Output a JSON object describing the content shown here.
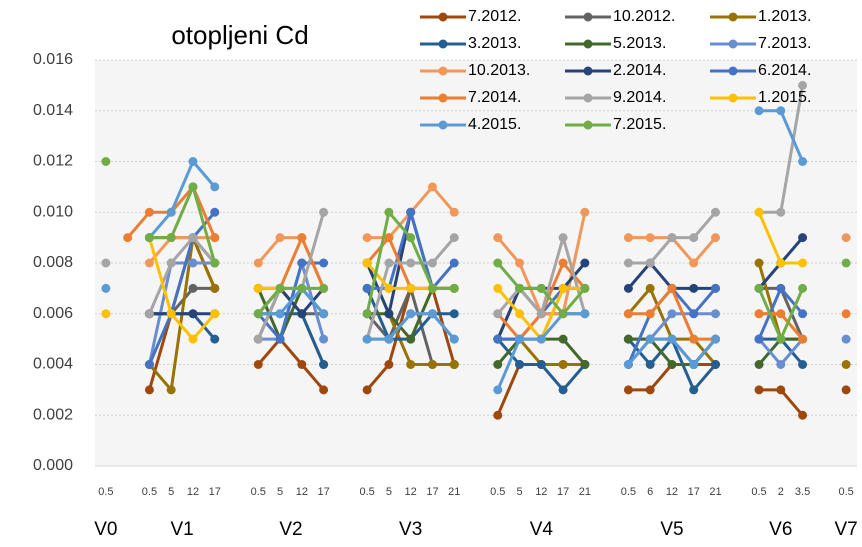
{
  "chart_data": {
    "type": "line",
    "title": "otopljeni Cd",
    "categories": [
      "0.5",
      null,
      "0.5",
      "5",
      "12",
      "17",
      null,
      "0.5",
      "5",
      "12",
      "17",
      null,
      "0.5",
      "5",
      "12",
      "17",
      "21",
      null,
      "0.5",
      "5",
      "12",
      "17",
      "21",
      null,
      "0.5",
      "6",
      "12",
      "17",
      "21",
      null,
      "0.5",
      "2",
      "3.5",
      null,
      "0.5"
    ],
    "group_labels": [
      "V0",
      "V1",
      "V2",
      "V3",
      "V4",
      "V5",
      "V6",
      "V7"
    ],
    "ylim": [
      0,
      0.016
    ],
    "yticks": [
      {
        "value": 0,
        "label": "0.000"
      },
      {
        "value": 0.002,
        "label": "0.002"
      },
      {
        "value": 0.004,
        "label": "0.004"
      },
      {
        "value": 0.006,
        "label": "0.006"
      },
      {
        "value": 0.008,
        "label": "0.008"
      },
      {
        "value": 0.01,
        "label": "0.010"
      },
      {
        "value": 0.012,
        "label": "0.012"
      },
      {
        "value": 0.014,
        "label": "0.014"
      },
      {
        "value": 0.016,
        "label": "0.016"
      }
    ],
    "grid": true,
    "legend": "top-right",
    "series": [
      {
        "name": "7.2012.",
        "color": "#9e480e",
        "values": [
          null,
          null,
          0.003,
          0.006,
          0.009,
          0.007,
          null,
          0.004,
          0.005,
          0.004,
          0.003,
          null,
          0.003,
          0.004,
          0.007,
          0.007,
          0.004,
          null,
          0.002,
          0.004,
          0.004,
          0.004,
          0.004,
          null,
          0.003,
          0.003,
          0.004,
          0.004,
          0.004,
          null,
          0.003,
          0.003,
          0.002,
          null,
          0.003
        ]
      },
      {
        "name": "10.2012.",
        "color": "#636363",
        "values": [
          null,
          null,
          0.006,
          0.006,
          0.007,
          0.007,
          null,
          0.005,
          0.007,
          0.006,
          0.006,
          null,
          0.006,
          0.005,
          0.007,
          0.004,
          0.004,
          null,
          0.005,
          0.007,
          0.006,
          0.006,
          0.006,
          null,
          0.005,
          0.005,
          0.005,
          0.004,
          0.005,
          null,
          0.007,
          0.007,
          0.005,
          null,
          null
        ]
      },
      {
        "name": "1.2013.",
        "color": "#997300",
        "values": [
          null,
          null,
          0.004,
          0.003,
          0.009,
          0.007,
          null,
          0.007,
          0.007,
          0.006,
          0.004,
          null,
          0.008,
          0.006,
          0.004,
          0.004,
          0.004,
          null,
          0.005,
          0.005,
          0.004,
          0.004,
          0.004,
          null,
          0.006,
          0.007,
          0.005,
          0.005,
          0.004,
          null,
          0.008,
          0.005,
          0.005,
          null,
          0.004
        ]
      },
      {
        "name": "3.2013.",
        "color": "#255e91",
        "values": [
          null,
          null,
          0.006,
          0.006,
          0.006,
          0.005,
          null,
          0.006,
          0.006,
          0.006,
          0.004,
          null,
          0.007,
          0.005,
          0.005,
          0.006,
          0.006,
          null,
          0.005,
          0.004,
          0.004,
          0.003,
          0.004,
          null,
          0.005,
          0.004,
          0.005,
          0.003,
          0.004,
          null,
          0.005,
          0.005,
          0.004,
          null,
          null
        ]
      },
      {
        "name": "5.2013.",
        "color": "#43682b",
        "values": [
          null,
          null,
          0.009,
          0.009,
          0.009,
          0.008,
          null,
          0.007,
          0.005,
          0.007,
          0.006,
          null,
          0.006,
          0.006,
          0.005,
          0.007,
          0.007,
          null,
          0.004,
          0.005,
          0.005,
          0.005,
          0.004,
          null,
          0.005,
          0.005,
          0.004,
          0.004,
          0.005,
          null,
          0.004,
          0.005,
          0.005,
          null,
          null
        ]
      },
      {
        "name": "7.2013.",
        "color": "#698ed0",
        "values": [
          null,
          null,
          0.004,
          0.008,
          0.008,
          0.008,
          null,
          0.005,
          0.005,
          0.008,
          0.005,
          null,
          0.005,
          0.005,
          0.006,
          0.006,
          0.005,
          null,
          0.005,
          0.005,
          0.005,
          0.007,
          0.007,
          null,
          0.004,
          0.005,
          0.006,
          0.006,
          0.006,
          null,
          0.005,
          0.004,
          0.005,
          null,
          0.005
        ]
      },
      {
        "name": "10.2013.",
        "color": "#f1975a",
        "values": [
          null,
          null,
          0.008,
          0.009,
          0.009,
          0.009,
          null,
          0.008,
          0.009,
          0.009,
          0.007,
          null,
          0.009,
          0.009,
          0.01,
          0.011,
          0.01,
          null,
          0.009,
          0.008,
          0.006,
          0.006,
          0.01,
          null,
          0.009,
          0.009,
          0.009,
          0.008,
          0.009,
          null,
          0.006,
          0.006,
          0.005,
          null,
          0.009
        ]
      },
      {
        "name": "2.2014.",
        "color": "#264478",
        "values": [
          null,
          null,
          0.006,
          0.006,
          0.006,
          0.006,
          null,
          0.006,
          0.007,
          0.006,
          0.007,
          null,
          0.008,
          0.006,
          0.01,
          0.007,
          0.007,
          null,
          0.005,
          0.007,
          0.007,
          0.007,
          0.008,
          null,
          0.007,
          0.008,
          0.007,
          0.007,
          0.007,
          null,
          0.007,
          0.008,
          0.009,
          null,
          null
        ]
      },
      {
        "name": "6.2014.",
        "color": "#4472c4",
        "values": [
          null,
          null,
          0.004,
          0.006,
          0.009,
          0.01,
          null,
          0.006,
          0.005,
          0.008,
          0.008,
          null,
          0.007,
          0.007,
          0.01,
          0.007,
          0.008,
          null,
          0.005,
          0.005,
          0.006,
          0.007,
          0.007,
          null,
          0.004,
          0.006,
          0.007,
          0.006,
          0.007,
          null,
          0.005,
          0.007,
          0.006,
          null,
          null
        ]
      },
      {
        "name": "7.2014.",
        "color": "#ed7d31",
        "values": [
          null,
          0.009,
          0.01,
          0.01,
          0.011,
          0.009,
          null,
          0.007,
          0.007,
          0.009,
          0.007,
          null,
          0.008,
          0.009,
          0.007,
          0.007,
          0.007,
          null,
          0.006,
          0.005,
          0.006,
          0.008,
          0.007,
          null,
          0.006,
          0.006,
          0.007,
          0.005,
          0.005,
          null,
          0.006,
          0.006,
          0.005,
          null,
          0.006
        ]
      },
      {
        "name": "9.2014.",
        "color": "#a5a5a5",
        "values": [
          0.008,
          null,
          0.006,
          0.008,
          0.009,
          0.008,
          null,
          0.005,
          0.007,
          0.007,
          0.01,
          null,
          0.005,
          0.008,
          0.008,
          0.008,
          0.009,
          null,
          0.006,
          0.007,
          0.006,
          0.009,
          0.006,
          null,
          0.008,
          0.008,
          0.009,
          0.009,
          0.01,
          null,
          0.01,
          0.01,
          0.015,
          null,
          null
        ]
      },
      {
        "name": "1.2015.",
        "color": "#ffc000",
        "values": [
          0.006,
          null,
          0.009,
          0.006,
          0.005,
          0.006,
          null,
          0.007,
          0.007,
          0.007,
          0.007,
          null,
          0.008,
          0.007,
          0.007,
          0.007,
          0.007,
          null,
          0.007,
          0.006,
          0.005,
          0.007,
          0.007,
          null,
          null,
          null,
          null,
          null,
          null,
          null,
          0.01,
          0.008,
          0.008,
          null,
          null
        ]
      },
      {
        "name": "4.2015.",
        "color": "#5b9bd5",
        "values": [
          0.007,
          null,
          0.009,
          0.01,
          0.012,
          0.011,
          null,
          0.006,
          0.006,
          0.007,
          0.006,
          null,
          0.005,
          0.005,
          0.006,
          0.006,
          0.005,
          null,
          0.003,
          0.005,
          0.005,
          0.006,
          0.006,
          null,
          0.004,
          0.005,
          0.005,
          0.004,
          0.005,
          null,
          0.014,
          0.014,
          0.012,
          null,
          null
        ]
      },
      {
        "name": "7.2015.",
        "color": "#70ad47",
        "values": [
          0.012,
          null,
          0.009,
          0.009,
          0.011,
          0.008,
          null,
          0.006,
          0.007,
          0.007,
          0.007,
          null,
          0.006,
          0.01,
          0.009,
          0.007,
          0.007,
          null,
          0.008,
          0.007,
          0.007,
          0.006,
          0.007,
          null,
          null,
          null,
          null,
          null,
          null,
          null,
          0.007,
          0.005,
          0.007,
          null,
          0.008
        ]
      }
    ]
  }
}
